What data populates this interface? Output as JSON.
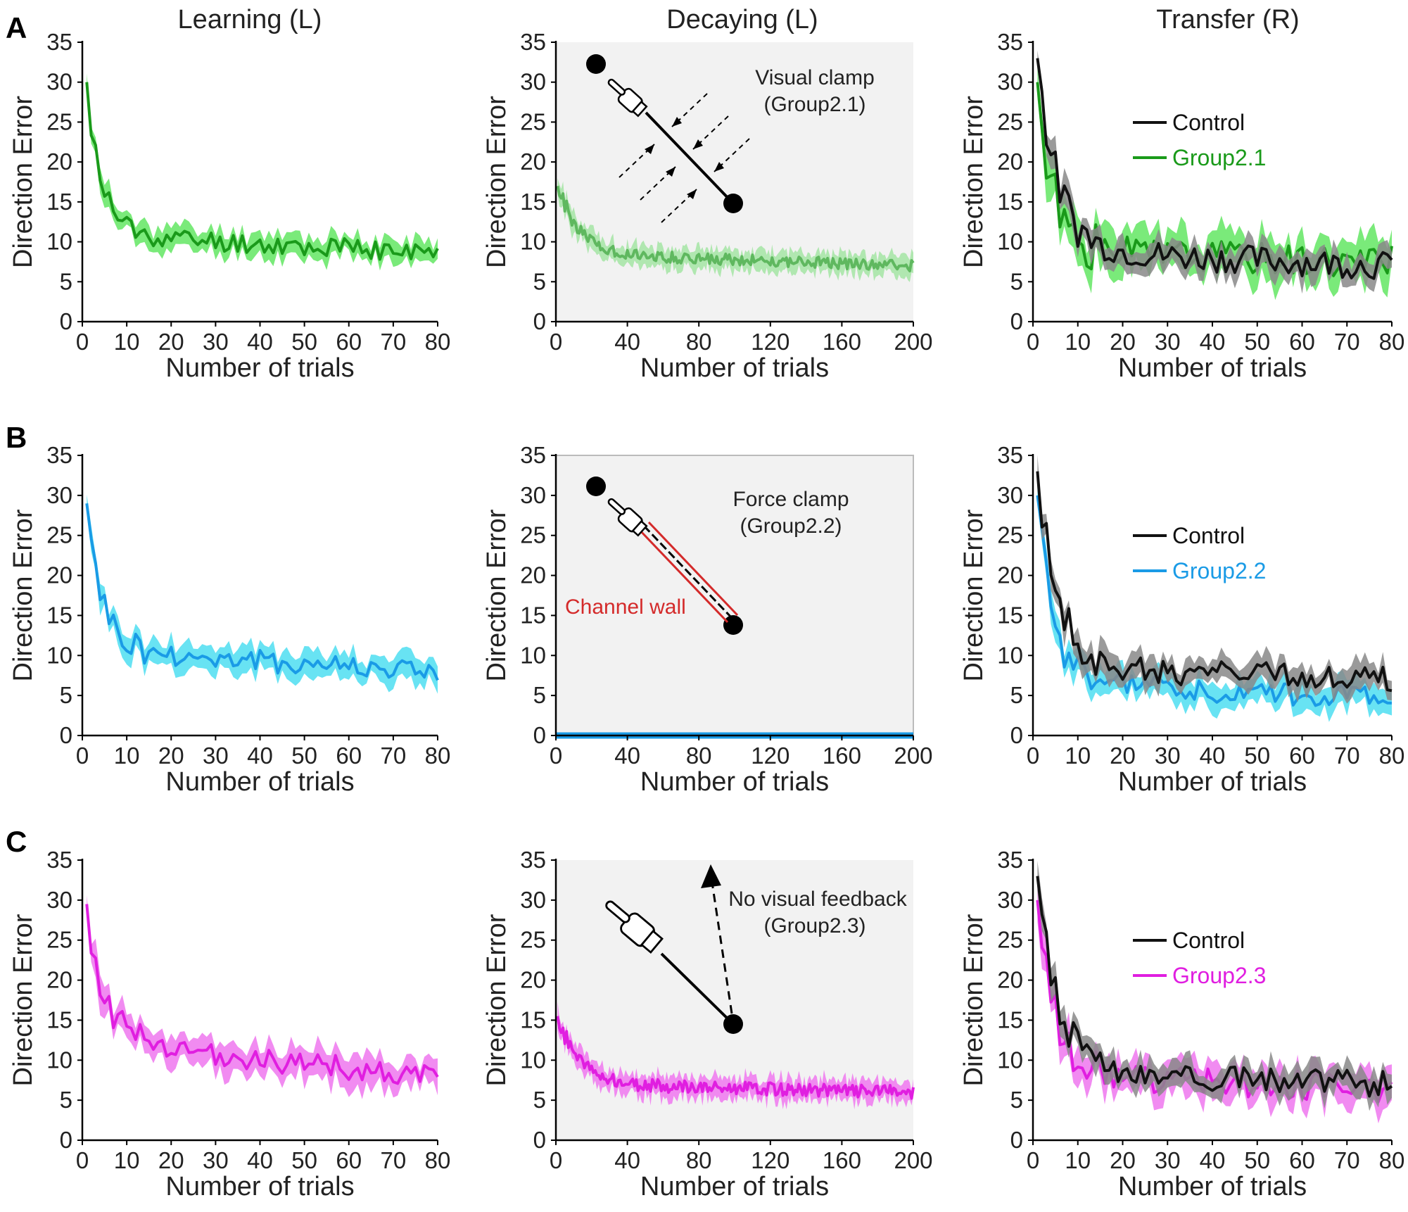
{
  "column_titles": [
    "Learning (L)",
    "Decaying (L)",
    "Transfer (R)"
  ],
  "row_labels": [
    "A",
    "B",
    "C"
  ],
  "colors": {
    "green": "#1a9a1a",
    "green_band": "#6be86b",
    "blue": "#1a9be6",
    "blue_band": "#58e0f2",
    "magenta": "#e01ee0",
    "magenta_band": "#f07ef0",
    "control": "#111111",
    "control_band": "#888888",
    "panel_bg": "#f2f2f2",
    "channel": "#d42a2a"
  },
  "annotations": {
    "A": {
      "line1": "Visual clamp",
      "line2": "(Group2.1)"
    },
    "B": {
      "line1": "Force clamp",
      "line2": "(Group2.2)",
      "channel": "Channel wall"
    },
    "C": {
      "line1": "No visual feedback",
      "line2": "(Group2.3)"
    }
  },
  "chart_data": [
    {
      "id": "A-learning",
      "type": "line",
      "title": "Learning (L)",
      "xlabel": "Number of trials",
      "ylabel": "Direction Error",
      "xlim": [
        0,
        80
      ],
      "ylim": [
        0,
        35
      ],
      "xticks": [
        0,
        10,
        20,
        30,
        40,
        50,
        60,
        70,
        80
      ],
      "yticks": [
        0,
        5,
        10,
        15,
        20,
        25,
        30,
        35
      ],
      "series": [
        {
          "name": "Group2.1",
          "color": "green",
          "band": "green_band",
          "start": 30,
          "plateau": 11,
          "end": 8.5,
          "decay": 3.2,
          "n": 80,
          "noise": 1.3,
          "bandw": 1.3,
          "seed": 11
        }
      ]
    },
    {
      "id": "A-decaying",
      "type": "line",
      "title": "Decaying (L)",
      "xlabel": "Number of trials",
      "ylabel": "Direction Error",
      "xlim": [
        0,
        200
      ],
      "ylim": [
        0,
        35
      ],
      "xticks": [
        0,
        40,
        80,
        120,
        160,
        200
      ],
      "yticks": [
        0,
        5,
        10,
        15,
        20,
        25,
        30,
        35
      ],
      "shaded": true,
      "series": [
        {
          "name": "Group2.1",
          "color": "green_light",
          "band": "green_band_light",
          "start": 17,
          "plateau": 8.5,
          "end": 7,
          "decay": 12,
          "n": 200,
          "noise": 0.7,
          "bandw": 1.2,
          "seed": 21
        }
      ]
    },
    {
      "id": "A-transfer",
      "type": "line",
      "title": "Transfer (R)",
      "xlabel": "Number of trials",
      "ylabel": "Direction Error",
      "xlim": [
        0,
        80
      ],
      "ylim": [
        0,
        35
      ],
      "xticks": [
        0,
        10,
        20,
        30,
        40,
        50,
        60,
        70,
        80
      ],
      "yticks": [
        0,
        5,
        10,
        15,
        20,
        25,
        30,
        35
      ],
      "legend": [
        "Control",
        "Group2.1"
      ],
      "series": [
        {
          "name": "Group2.1",
          "color": "green",
          "band": "green_band",
          "start": 30,
          "plateau": 9,
          "end": 7.5,
          "decay": 3.5,
          "n": 80,
          "noise": 2,
          "bandw": 2.5,
          "seed": 31
        },
        {
          "name": "Control",
          "color": "control",
          "band": "control_band",
          "start": 33,
          "plateau": 9,
          "end": 7,
          "decay": 4.5,
          "n": 80,
          "noise": 1.8,
          "bandw": 1.6,
          "seed": 32
        }
      ]
    },
    {
      "id": "B-learning",
      "type": "line",
      "title": "",
      "xlabel": "Number of trials",
      "ylabel": "Direction Error",
      "xlim": [
        0,
        80
      ],
      "ylim": [
        0,
        35
      ],
      "xticks": [
        0,
        10,
        20,
        30,
        40,
        50,
        60,
        70,
        80
      ],
      "yticks": [
        0,
        5,
        10,
        15,
        20,
        25,
        30,
        35
      ],
      "series": [
        {
          "name": "Group2.2",
          "color": "blue",
          "band": "blue_band",
          "start": 29,
          "plateau": 10.5,
          "end": 8,
          "decay": 3.5,
          "n": 80,
          "noise": 1.4,
          "bandw": 1.5,
          "seed": 41
        }
      ]
    },
    {
      "id": "B-decaying",
      "type": "line",
      "title": "",
      "xlabel": "Number of trials",
      "ylabel": "Direction Error",
      "xlim": [
        0,
        200
      ],
      "ylim": [
        0,
        35
      ],
      "xticks": [
        0,
        40,
        80,
        120,
        160,
        200
      ],
      "yticks": [
        0,
        5,
        10,
        15,
        20,
        25,
        30,
        35
      ],
      "shaded": true,
      "boxed": true,
      "series": [
        {
          "name": "Group2.2",
          "color": "blue",
          "band": "blue_band",
          "flat": 0,
          "n": 200,
          "seed": 51
        }
      ]
    },
    {
      "id": "B-transfer",
      "type": "line",
      "title": "",
      "xlabel": "Number of trials",
      "ylabel": "Direction Error",
      "xlim": [
        0,
        80
      ],
      "ylim": [
        0,
        35
      ],
      "xticks": [
        0,
        10,
        20,
        30,
        40,
        50,
        60,
        70,
        80
      ],
      "yticks": [
        0,
        5,
        10,
        15,
        20,
        25,
        30,
        35
      ],
      "legend": [
        "Control",
        "Group2.2"
      ],
      "series": [
        {
          "name": "Group2.2",
          "color": "blue",
          "band": "blue_band",
          "start": 30,
          "plateau": 6.5,
          "end": 4.5,
          "decay": 3.5,
          "n": 80,
          "noise": 1.5,
          "bandw": 1.6,
          "seed": 61
        },
        {
          "name": "Control",
          "color": "control",
          "band": "control_band",
          "start": 33,
          "plateau": 8.5,
          "end": 7,
          "decay": 4.5,
          "n": 80,
          "noise": 1.6,
          "bandw": 1.6,
          "seed": 62
        }
      ]
    },
    {
      "id": "C-learning",
      "type": "line",
      "title": "",
      "xlabel": "Number of trials",
      "ylabel": "Direction Error",
      "xlim": [
        0,
        80
      ],
      "ylim": [
        0,
        35
      ],
      "xticks": [
        0,
        10,
        20,
        30,
        40,
        50,
        60,
        70,
        80
      ],
      "yticks": [
        0,
        5,
        10,
        15,
        20,
        25,
        30,
        35
      ],
      "series": [
        {
          "name": "Group2.3",
          "color": "magenta",
          "band": "magenta_band",
          "start": 29.5,
          "plateau": 12,
          "end": 8,
          "decay": 4,
          "n": 80,
          "noise": 1.5,
          "bandw": 1.8,
          "seed": 71
        }
      ]
    },
    {
      "id": "C-decaying",
      "type": "line",
      "title": "",
      "xlabel": "Number of trials",
      "ylabel": "Direction Error",
      "xlim": [
        0,
        200
      ],
      "ylim": [
        0,
        35
      ],
      "xticks": [
        0,
        40,
        80,
        120,
        160,
        200
      ],
      "yticks": [
        0,
        5,
        10,
        15,
        20,
        25,
        30,
        35
      ],
      "shaded": true,
      "series": [
        {
          "name": "Group2.3",
          "color": "magenta",
          "band": "magenta_band",
          "start": 15.5,
          "plateau": 7,
          "end": 6,
          "decay": 12,
          "n": 200,
          "noise": 0.8,
          "bandw": 1.3,
          "seed": 81
        }
      ]
    },
    {
      "id": "C-transfer",
      "type": "line",
      "title": "",
      "xlabel": "Number of trials",
      "ylabel": "Direction Error",
      "xlim": [
        0,
        80
      ],
      "ylim": [
        0,
        35
      ],
      "xticks": [
        0,
        10,
        20,
        30,
        40,
        50,
        60,
        70,
        80
      ],
      "yticks": [
        0,
        5,
        10,
        15,
        20,
        25,
        30,
        35
      ],
      "legend": [
        "Control",
        "Group2.3"
      ],
      "series": [
        {
          "name": "Group2.3",
          "color": "magenta",
          "band": "magenta_band",
          "start": 30,
          "plateau": 8,
          "end": 6.5,
          "decay": 4,
          "n": 80,
          "noise": 1.8,
          "bandw": 2,
          "seed": 91
        },
        {
          "name": "Control",
          "color": "control",
          "band": "control_band",
          "start": 33,
          "plateau": 8.5,
          "end": 7,
          "decay": 4.5,
          "n": 80,
          "noise": 1.6,
          "bandw": 1.6,
          "seed": 92
        }
      ]
    }
  ]
}
